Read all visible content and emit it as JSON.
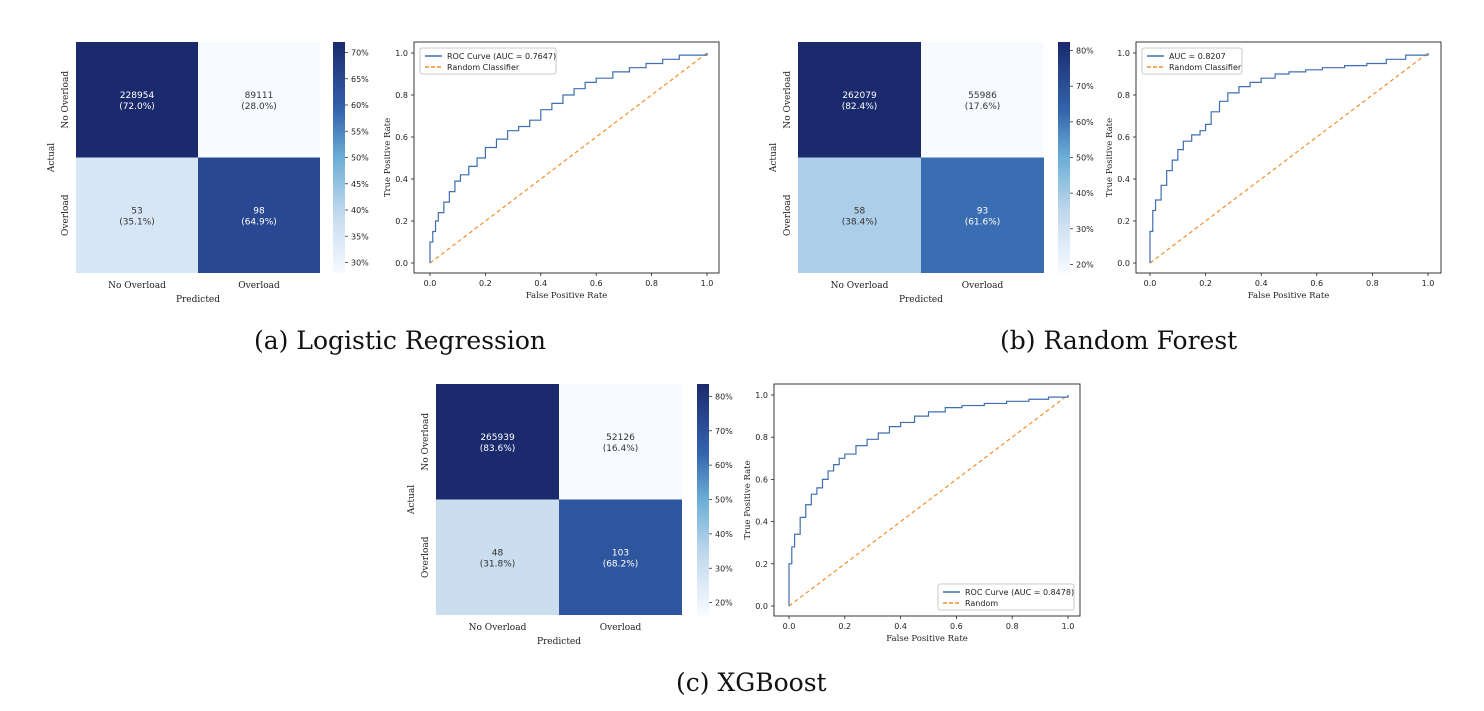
{
  "panels": [
    {
      "caption": "(a) Logistic Regression",
      "heatmap": {
        "x_title": "Predicted",
        "y_title": "Actual",
        "x_ticks": [
          "No Overload",
          "Overload"
        ],
        "y_ticks": [
          "No Overload",
          "Overload"
        ],
        "cells": [
          [
            {
              "count": "228954",
              "pct": "(72.0%)",
              "value": 72.0
            },
            {
              "count": "89111",
              "pct": "(28.0%)",
              "value": 28.0
            }
          ],
          [
            {
              "count": "53",
              "pct": "(35.1%)",
              "value": 35.1
            },
            {
              "count": "98",
              "pct": "(64.9%)",
              "value": 64.9
            }
          ]
        ],
        "colorbar": {
          "ticks": [
            "70%",
            "65%",
            "60%",
            "55%",
            "50%",
            "45%",
            "40%",
            "35%",
            "30%"
          ],
          "min": 28.0,
          "max": 72.0
        }
      },
      "roc": {
        "xlabel": "False Positive Rate",
        "ylabel": "True Positive Rate",
        "x_ticks": [
          "0.0",
          "0.2",
          "0.4",
          "0.6",
          "0.8",
          "1.0"
        ],
        "y_ticks": [
          "0.0",
          "0.2",
          "0.4",
          "0.6",
          "0.8",
          "1.0"
        ],
        "legend_position": "top-left",
        "legend": [
          "ROC Curve (AUC = 0.7647)",
          "Random Classifier"
        ],
        "auc": 0.7647
      }
    },
    {
      "caption": "(b) Random Forest",
      "heatmap": {
        "x_title": "Predicted",
        "y_title": "Actual",
        "x_ticks": [
          "No Overload",
          "Overload"
        ],
        "y_ticks": [
          "No Overload",
          "Overload"
        ],
        "cells": [
          [
            {
              "count": "262079",
              "pct": "(82.4%)",
              "value": 82.4
            },
            {
              "count": "55986",
              "pct": "(17.6%)",
              "value": 17.6
            }
          ],
          [
            {
              "count": "58",
              "pct": "(38.4%)",
              "value": 38.4
            },
            {
              "count": "93",
              "pct": "(61.6%)",
              "value": 61.6
            }
          ]
        ],
        "colorbar": {
          "ticks": [
            "80%",
            "70%",
            "60%",
            "50%",
            "40%",
            "30%",
            "20%"
          ],
          "min": 17.6,
          "max": 82.4
        }
      },
      "roc": {
        "xlabel": "False Positive Rate",
        "ylabel": "True Positive Rate",
        "x_ticks": [
          "0.0",
          "0.2",
          "0.4",
          "0.6",
          "0.8",
          "1.0"
        ],
        "y_ticks": [
          "0.0",
          "0.2",
          "0.4",
          "0.6",
          "0.8",
          "1.0"
        ],
        "legend_position": "top-left",
        "legend": [
          "AUC = 0.8207",
          "Random Classifier"
        ],
        "auc": 0.8207
      }
    },
    {
      "caption": "(c) XGBoost",
      "heatmap": {
        "x_title": "Predicted",
        "y_title": "Actual",
        "x_ticks": [
          "No Overload",
          "Overload"
        ],
        "y_ticks": [
          "No Overload",
          "Overload"
        ],
        "cells": [
          [
            {
              "count": "265939",
              "pct": "(83.6%)",
              "value": 83.6
            },
            {
              "count": "52126",
              "pct": "(16.4%)",
              "value": 16.4
            }
          ],
          [
            {
              "count": "48",
              "pct": "(31.8%)",
              "value": 31.8
            },
            {
              "count": "103",
              "pct": "(68.2%)",
              "value": 68.2
            }
          ]
        ],
        "colorbar": {
          "ticks": [
            "80%",
            "70%",
            "60%",
            "50%",
            "40%",
            "30%",
            "20%"
          ],
          "min": 16.4,
          "max": 83.6
        }
      },
      "roc": {
        "xlabel": "False Positive Rate",
        "ylabel": "True Positive Rate",
        "x_ticks": [
          "0.0",
          "0.2",
          "0.4",
          "0.6",
          "0.8",
          "1.0"
        ],
        "y_ticks": [
          "0.0",
          "0.2",
          "0.4",
          "0.6",
          "0.8",
          "1.0"
        ],
        "legend_position": "bottom-right",
        "legend": [
          "ROC Curve (AUC = 0.8478)",
          "Random"
        ],
        "auc": 0.8478
      }
    }
  ],
  "colors": {
    "roc_line": "#3f6fb0",
    "random_line": "#f28e2b",
    "heat_low": "#f7fbff",
    "heat_high": "#1a2a6c"
  },
  "chart_data": [
    {
      "type": "heatmap",
      "title": "",
      "x": [
        "No Overload",
        "Overload"
      ],
      "y": [
        "No Overload",
        "Overload"
      ],
      "xlabel": "Predicted",
      "ylabel": "Actual",
      "values": [
        [
          228954,
          89111
        ],
        [
          53,
          98
        ]
      ],
      "row_percent": [
        [
          72.0,
          28.0
        ],
        [
          35.1,
          64.9
        ]
      ]
    },
    {
      "type": "line",
      "title": "",
      "xlabel": "False Positive Rate",
      "ylabel": "True Positive Rate",
      "xlim": [
        0,
        1
      ],
      "ylim": [
        0,
        1
      ],
      "series": [
        {
          "name": "ROC Curve (AUC = 0.7647)",
          "x": [
            0.0,
            0.0,
            0.01,
            0.02,
            0.03,
            0.05,
            0.07,
            0.09,
            0.11,
            0.14,
            0.17,
            0.2,
            0.24,
            0.28,
            0.32,
            0.36,
            0.4,
            0.44,
            0.48,
            0.52,
            0.56,
            0.6,
            0.66,
            0.72,
            0.78,
            0.84,
            0.9,
            1.0
          ],
          "y": [
            0.0,
            0.1,
            0.15,
            0.2,
            0.24,
            0.29,
            0.34,
            0.39,
            0.42,
            0.46,
            0.5,
            0.55,
            0.59,
            0.63,
            0.65,
            0.68,
            0.73,
            0.76,
            0.8,
            0.83,
            0.86,
            0.88,
            0.91,
            0.93,
            0.95,
            0.97,
            0.99,
            1.0
          ]
        },
        {
          "name": "Random Classifier",
          "x": [
            0,
            1
          ],
          "y": [
            0,
            1
          ]
        }
      ]
    },
    {
      "type": "heatmap",
      "title": "",
      "x": [
        "No Overload",
        "Overload"
      ],
      "y": [
        "No Overload",
        "Overload"
      ],
      "xlabel": "Predicted",
      "ylabel": "Actual",
      "values": [
        [
          262079,
          55986
        ],
        [
          58,
          93
        ]
      ],
      "row_percent": [
        [
          82.4,
          17.6
        ],
        [
          38.4,
          61.6
        ]
      ]
    },
    {
      "type": "line",
      "title": "",
      "xlabel": "False Positive Rate",
      "ylabel": "True Positive Rate",
      "xlim": [
        0,
        1
      ],
      "ylim": [
        0,
        1
      ],
      "series": [
        {
          "name": "AUC = 0.8207",
          "x": [
            0.0,
            0.0,
            0.01,
            0.02,
            0.04,
            0.06,
            0.08,
            0.1,
            0.12,
            0.15,
            0.18,
            0.2,
            0.22,
            0.25,
            0.28,
            0.32,
            0.36,
            0.4,
            0.45,
            0.5,
            0.56,
            0.62,
            0.7,
            0.78,
            0.85,
            0.92,
            1.0
          ],
          "y": [
            0.0,
            0.15,
            0.25,
            0.3,
            0.37,
            0.44,
            0.49,
            0.54,
            0.58,
            0.61,
            0.63,
            0.66,
            0.72,
            0.77,
            0.81,
            0.84,
            0.86,
            0.88,
            0.9,
            0.91,
            0.92,
            0.93,
            0.94,
            0.95,
            0.97,
            0.99,
            1.0
          ]
        },
        {
          "name": "Random Classifier",
          "x": [
            0,
            1
          ],
          "y": [
            0,
            1
          ]
        }
      ]
    },
    {
      "type": "heatmap",
      "title": "",
      "x": [
        "No Overload",
        "Overload"
      ],
      "y": [
        "No Overload",
        "Overload"
      ],
      "xlabel": "Predicted",
      "ylabel": "Actual",
      "values": [
        [
          265939,
          52126
        ],
        [
          48,
          103
        ]
      ],
      "row_percent": [
        [
          83.6,
          16.4
        ],
        [
          31.8,
          68.2
        ]
      ]
    },
    {
      "type": "line",
      "title": "",
      "xlabel": "False Positive Rate",
      "ylabel": "True Positive Rate",
      "xlim": [
        0,
        1
      ],
      "ylim": [
        0,
        1
      ],
      "series": [
        {
          "name": "ROC Curve (AUC = 0.8478)",
          "x": [
            0.0,
            0.0,
            0.01,
            0.02,
            0.04,
            0.06,
            0.08,
            0.1,
            0.12,
            0.14,
            0.16,
            0.18,
            0.2,
            0.24,
            0.28,
            0.32,
            0.36,
            0.4,
            0.45,
            0.5,
            0.56,
            0.62,
            0.7,
            0.78,
            0.86,
            0.93,
            1.0
          ],
          "y": [
            0.0,
            0.2,
            0.28,
            0.34,
            0.42,
            0.48,
            0.53,
            0.56,
            0.6,
            0.64,
            0.67,
            0.7,
            0.72,
            0.76,
            0.79,
            0.82,
            0.85,
            0.87,
            0.9,
            0.92,
            0.94,
            0.95,
            0.96,
            0.97,
            0.98,
            0.99,
            1.0
          ]
        },
        {
          "name": "Random",
          "x": [
            0,
            1
          ],
          "y": [
            0,
            1
          ]
        }
      ]
    }
  ]
}
